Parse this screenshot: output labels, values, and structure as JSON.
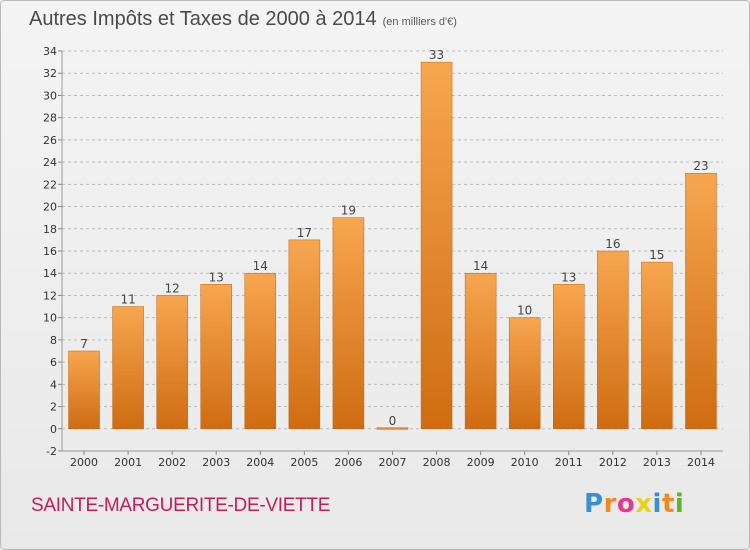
{
  "title": {
    "main": "Autres Impôts et Taxes de 2000 à 2014",
    "unit": "(en milliers d'€)"
  },
  "location": "SAINTE-MARGUERITE-DE-VIETTE",
  "logo": {
    "letters": [
      "P",
      "r",
      "o",
      "x",
      "i",
      "t",
      "i"
    ],
    "colors": [
      "#3a8fd0",
      "#f08a1c",
      "#e23b8a",
      "#e8d21a",
      "#3a8fd0",
      "#f08a1c",
      "#5bb531"
    ]
  },
  "colors": {
    "bar_top": "#f7a650",
    "bar_bottom": "#cf6c12",
    "grid": "#bbbbbb"
  },
  "chart_data": {
    "type": "bar",
    "title": "Autres Impôts et Taxes de 2000 à 2014",
    "xlabel": "",
    "ylabel": "",
    "categories": [
      "2000",
      "2001",
      "2002",
      "2003",
      "2004",
      "2005",
      "2006",
      "2007",
      "2008",
      "2009",
      "2010",
      "2011",
      "2012",
      "2013",
      "2014"
    ],
    "values": [
      7,
      11,
      12,
      13,
      14,
      17,
      19,
      0,
      33,
      14,
      10,
      13,
      16,
      15,
      23
    ],
    "ylim": [
      -2,
      34
    ],
    "yticks": [
      -2,
      0,
      2,
      4,
      6,
      8,
      10,
      12,
      14,
      16,
      18,
      20,
      22,
      24,
      26,
      28,
      30,
      32,
      34
    ],
    "grid": true
  }
}
